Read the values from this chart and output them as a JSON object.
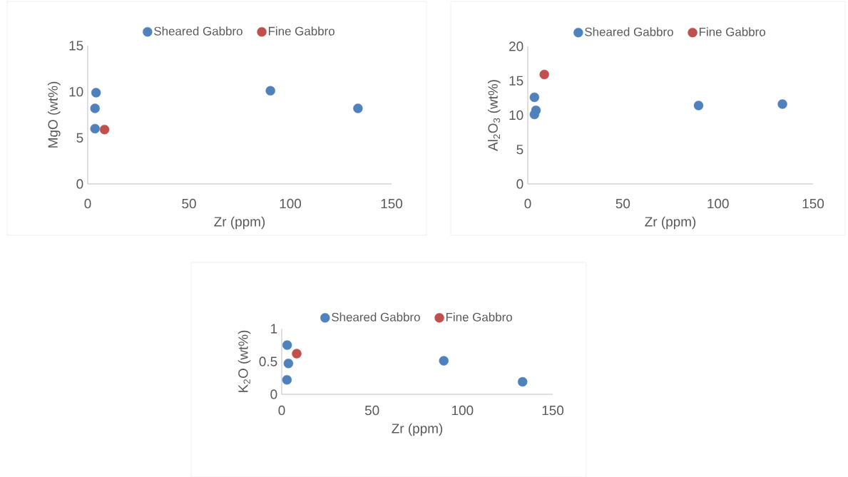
{
  "chart_data": [
    {
      "type": "scatter",
      "xlabel": "Zr (ppm)",
      "ylabel": "MgO (wt%)",
      "xlim": [
        0,
        150
      ],
      "xticks": [
        0,
        50,
        100,
        150
      ],
      "ylim": [
        0,
        15
      ],
      "yticks": [
        0,
        5,
        10,
        15
      ],
      "legend": "top",
      "series": [
        {
          "name": "Sheared Gabbro",
          "color": "#4f81bd",
          "x": [
            4.1,
            3.6,
            3.6,
            90.2,
            133.4
          ],
          "values": [
            9.9,
            8.2,
            6.0,
            10.1,
            8.2
          ]
        },
        {
          "name": "Fine Gabbro",
          "color": "#c0504d",
          "x": [
            8.3
          ],
          "values": [
            5.9
          ]
        }
      ]
    },
    {
      "type": "scatter",
      "xlabel": "Zr (ppm)",
      "ylabel": "Al$_{2}$O$_{3}$ (wt%)",
      "xlim": [
        0,
        150
      ],
      "xticks": [
        0,
        50,
        100,
        150
      ],
      "ylim": [
        0,
        20
      ],
      "yticks": [
        0,
        5,
        10,
        15,
        20
      ],
      "legend": "top",
      "series": [
        {
          "name": "Sheared Gabbro",
          "color": "#4f81bd",
          "x": [
            3.5,
            4.3,
            3.5,
            89.8,
            133.9
          ],
          "values": [
            12.6,
            10.7,
            10.1,
            11.4,
            11.6
          ]
        },
        {
          "name": "Fine Gabbro",
          "color": "#c0504d",
          "x": [
            8.7
          ],
          "values": [
            15.9
          ]
        }
      ]
    },
    {
      "type": "scatter",
      "xlabel": "Zr (ppm)",
      "ylabel": "K$_{2}$O (wt%)",
      "xlim": [
        0,
        150
      ],
      "xticks": [
        0,
        50,
        100,
        150
      ],
      "ylim": [
        0,
        1
      ],
      "yticks": [
        0,
        0.5,
        1
      ],
      "legend": "top",
      "series": [
        {
          "name": "Sheared Gabbro",
          "color": "#4f81bd",
          "x": [
            3.0,
            3.7,
            2.9,
            89.7,
            133.3
          ],
          "values": [
            0.75,
            0.47,
            0.22,
            0.51,
            0.19
          ]
        },
        {
          "name": "Fine Gabbro",
          "color": "#c0504d",
          "x": [
            8.3
          ],
          "values": [
            0.62
          ]
        }
      ]
    }
  ]
}
